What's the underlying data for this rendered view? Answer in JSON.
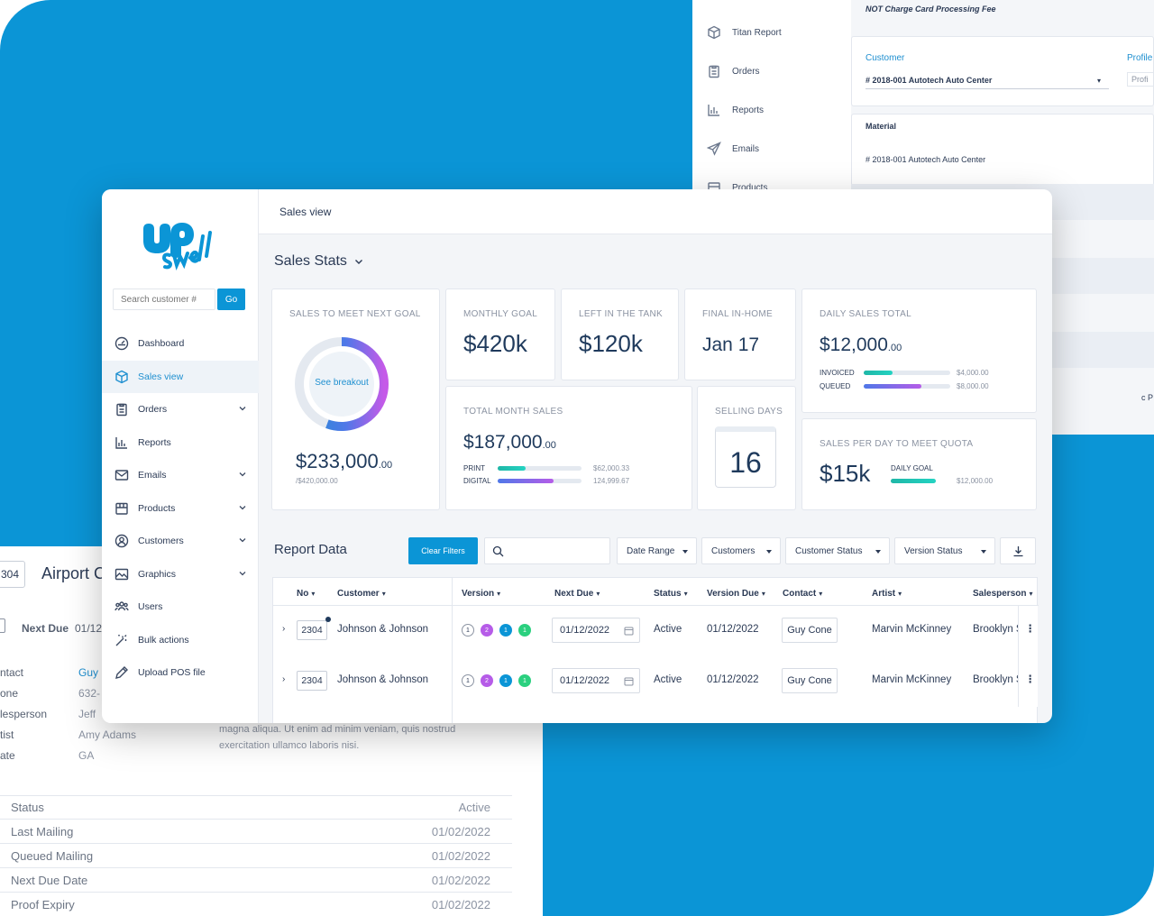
{
  "back_top_right": {
    "nav": [
      "Titan Report",
      "Orders",
      "Reports",
      "Emails",
      "Products"
    ],
    "note": "NOT Charge Card Processing Fee",
    "customer_label": "Customer",
    "customer_value": "# 2018-001 Autotech Auto Center",
    "profile_label": "Profile",
    "profile_value": "Profi",
    "material_label": "Material",
    "material_value": "# 2018-001 Autotech Auto Center",
    "edge_text": "c P"
  },
  "back_bottom_left": {
    "id_fragment": "304",
    "name_fragment": "Airport C",
    "next_due_label": "Next Due",
    "next_due_value": "01/12",
    "fields": [
      {
        "k": "ntact",
        "v": "Guy"
      },
      {
        "k": "one",
        "v": "632-"
      },
      {
        "k": "lesperson",
        "v": "Jeff"
      },
      {
        "k": "tist",
        "v": "Amy Adams"
      },
      {
        "k": "ate",
        "v": "GA"
      }
    ],
    "lorem": "magna aliqua. Ut enim ad minim veniam, quis nostrud exercitation ullamco laboris nisi.",
    "stats": [
      {
        "k": "Status",
        "v": "Active"
      },
      {
        "k": "Last Mailing",
        "v": "01/02/2022"
      },
      {
        "k": "Queued Mailing",
        "v": "01/02/2022"
      },
      {
        "k": "Next Due Date",
        "v": "01/02/2022"
      },
      {
        "k": "Proof Expiry",
        "v": "01/02/2022"
      }
    ]
  },
  "sidebar": {
    "search_placeholder": "Search customer #",
    "go": "Go",
    "items": [
      {
        "label": "Dashboard"
      },
      {
        "label": "Sales view"
      },
      {
        "label": "Orders"
      },
      {
        "label": "Reports"
      },
      {
        "label": "Emails"
      },
      {
        "label": "Products"
      },
      {
        "label": "Customers"
      },
      {
        "label": "Graphics"
      },
      {
        "label": "Users"
      },
      {
        "label": "Bulk actions"
      },
      {
        "label": "Upload POS file"
      }
    ]
  },
  "topbar": {
    "title": "Sales view"
  },
  "stats_title": "Sales Stats",
  "cards": {
    "goal": {
      "label": "SALES TO MEET NEXT GOAL",
      "center": "See breakout",
      "value": "$233,000",
      "cents": ".00",
      "sub": "/$420,000.00",
      "progress": 0.555
    },
    "monthly": {
      "label": "MONTHLY GOAL",
      "value": "$420k"
    },
    "tank": {
      "label": "LEFT IN THE TANK",
      "value": "$120k"
    },
    "inhome": {
      "label": "FINAL IN-HOME",
      "value": "Jan 17"
    },
    "daily": {
      "label": "DAILY SALES TOTAL",
      "value": "$12,000",
      "cents": ".00",
      "rows": [
        {
          "k": "INVOICED",
          "v": "$4,000.00",
          "pct": 0.33
        },
        {
          "k": "QUEUED",
          "v": "$8,000.00",
          "pct": 0.67
        }
      ]
    },
    "month_sales": {
      "label": "TOTAL MONTH SALES",
      "value": "$187,000",
      "cents": ".00",
      "rows": [
        {
          "k": "PRINT",
          "v": "$62,000.33",
          "pct": 0.33
        },
        {
          "k": "DIGITAL",
          "v": "124,999.67",
          "pct": 0.67
        }
      ]
    },
    "selling": {
      "label": "SELLING DAYS",
      "value": "16"
    },
    "quota": {
      "label": "SALES PER DAY TO MEET QUOTA",
      "value": "$15k",
      "daily_goal_label": "DAILY GOAL",
      "daily_goal_value": "$12,000.00",
      "pct": 1.0
    }
  },
  "report": {
    "title": "Report Data",
    "clear": "Clear Filters",
    "filters": [
      "Date Range",
      "Customers",
      "Customer Status",
      "Version Status"
    ],
    "headers": [
      "No",
      "Customer",
      "Version",
      "Next Due",
      "Status",
      "Version Due",
      "Contact",
      "Artist",
      "Salesperson"
    ],
    "rows": [
      {
        "no": "2304",
        "customer": "Johnson & Johnson",
        "versions": [
          "1",
          "2",
          "1",
          "1"
        ],
        "next_due": "01/12/2022",
        "status": "Active",
        "version_due": "01/12/2022",
        "contact": "Guy Cone",
        "artist": "Marvin McKinney",
        "salesperson": "Brooklyn S"
      },
      {
        "no": "2304",
        "customer": "Johnson & Johnson",
        "versions": [
          "1",
          "2",
          "1",
          "1"
        ],
        "next_due": "01/12/2022",
        "status": "Active",
        "version_due": "01/12/2022",
        "contact": "Guy Cone",
        "artist": "Marvin McKinney",
        "salesperson": "Brooklyn S"
      }
    ]
  },
  "colors": {
    "brand": "#0b95d6",
    "purple": "#b65ce8",
    "teal": "#24d3c2",
    "blue": "#4f78e8"
  }
}
